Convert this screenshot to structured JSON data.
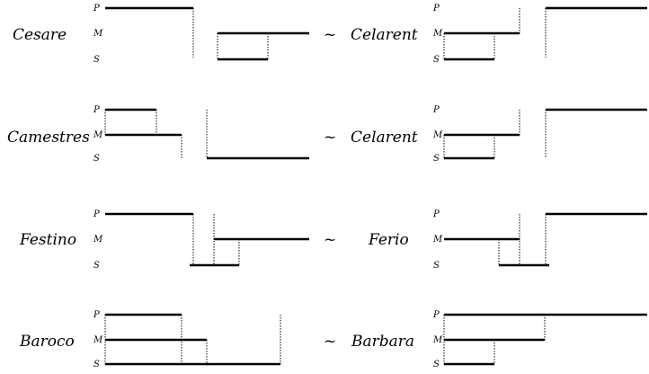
{
  "terms": [
    "P",
    "M",
    "S"
  ],
  "equivalence_symbol": "~",
  "rows": [
    {
      "left": "Cesare",
      "right": "Celarent"
    },
    {
      "left": "Camestres",
      "right": "Celarent"
    },
    {
      "left": "Festino",
      "right": "Ferio"
    },
    {
      "left": "Baroco",
      "right": "Barbara"
    }
  ]
}
